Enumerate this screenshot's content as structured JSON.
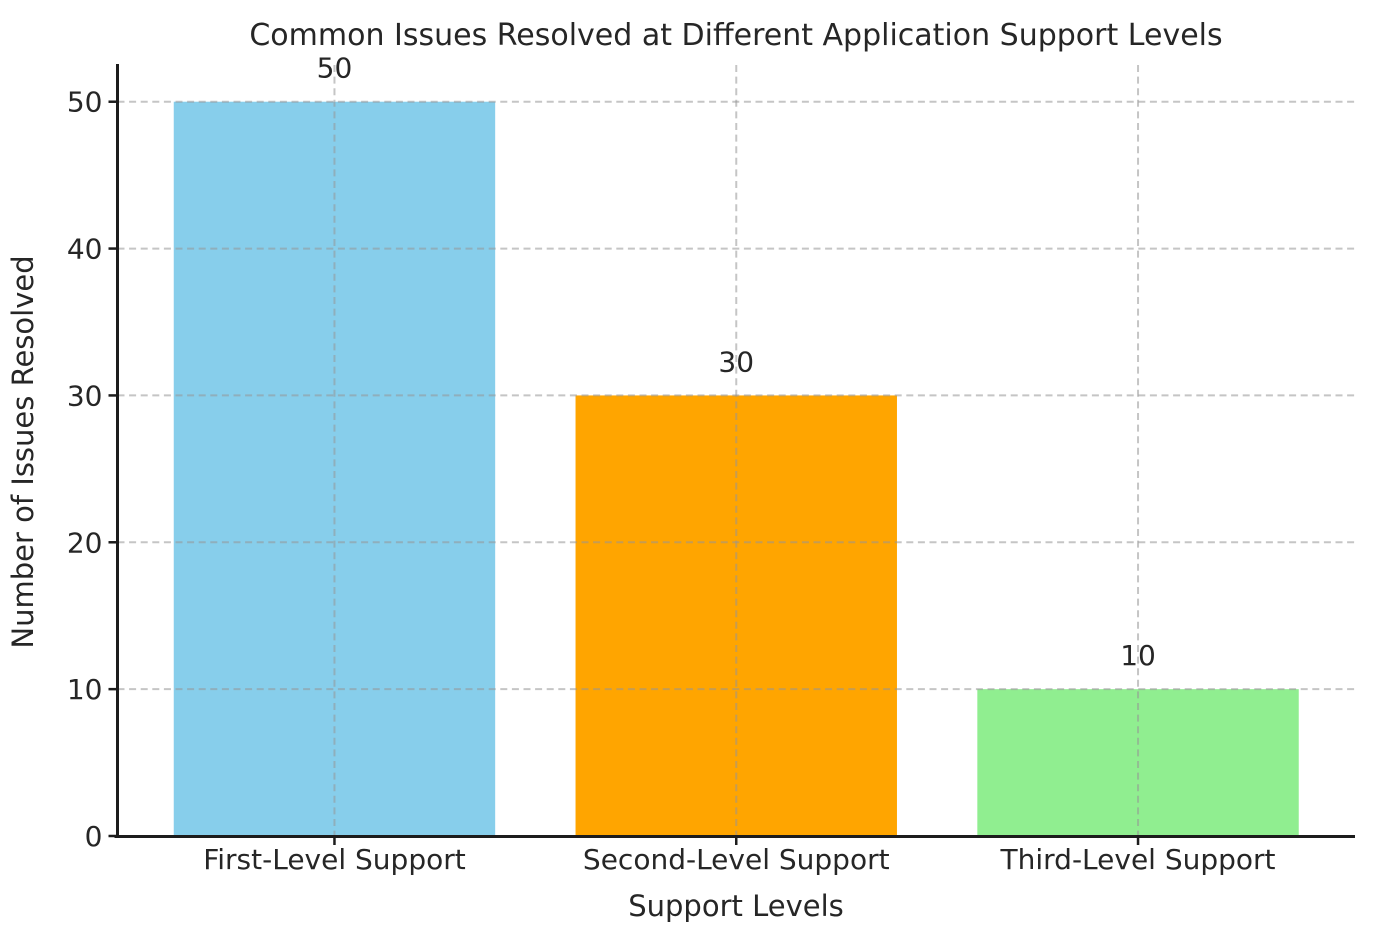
{
  "chart_data": {
    "type": "bar",
    "title": "Common Issues Resolved at Different Application Support Levels",
    "xlabel": "Support Levels",
    "ylabel": "Number of Issues Resolved",
    "categories": [
      "First-Level Support",
      "Second-Level Support",
      "Third-Level Support"
    ],
    "values": [
      50,
      30,
      10
    ],
    "value_labels": [
      "50",
      "30",
      "10"
    ],
    "bar_colors": [
      "#87CEEB",
      "#FFA500",
      "#90EE90"
    ],
    "yticks": [
      0,
      10,
      20,
      30,
      40,
      50
    ],
    "ytick_labels": [
      "0",
      "10",
      "20",
      "30",
      "40",
      "50"
    ],
    "ylim": [
      0,
      52.5
    ],
    "grid": {
      "visible": true,
      "linestyle": "dashed",
      "color": "rgba(150,150,150,0.55)",
      "horizontal_at_yticks": true,
      "vertical_at_categories": true
    },
    "legend": null,
    "colors": {
      "background": "#ffffff",
      "text": "#262626",
      "spine": "#1c1c1c"
    }
  }
}
